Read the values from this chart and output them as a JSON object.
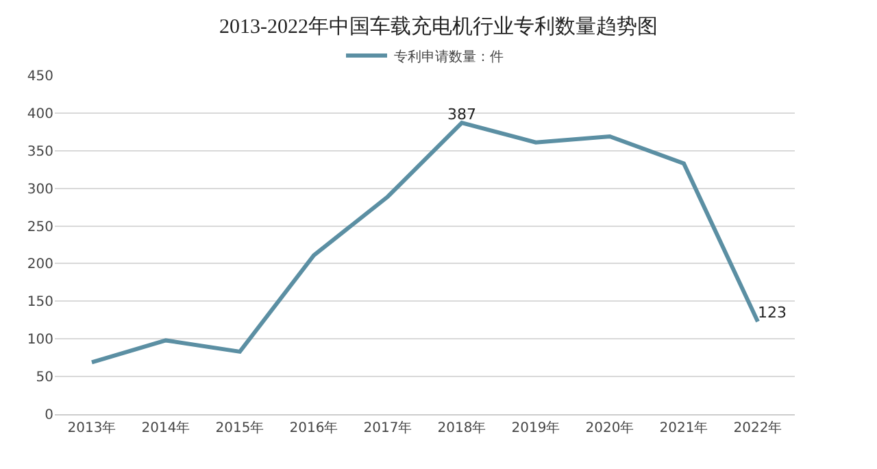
{
  "chart_data": {
    "type": "line",
    "title": "2013-2022年中国车载充电机行业专利数量趋势图",
    "categories": [
      "2013年",
      "2014年",
      "2015年",
      "2016年",
      "2017年",
      "2018年",
      "2019年",
      "2020年",
      "2021年",
      "2022年"
    ],
    "series": [
      {
        "name": "专利申请数量：件",
        "color": "#5b8fa3",
        "values": [
          69,
          98,
          83,
          211,
          289,
          387,
          361,
          369,
          333,
          123
        ],
        "value_labels": [
          null,
          null,
          null,
          null,
          null,
          "387",
          null,
          null,
          null,
          "123"
        ]
      }
    ],
    "ylim": [
      0,
      450
    ],
    "yticks": [
      0,
      50,
      100,
      150,
      200,
      250,
      300,
      350,
      400,
      450
    ],
    "grid": "y",
    "legend": "top",
    "marker": "none",
    "line_style": "solid"
  }
}
